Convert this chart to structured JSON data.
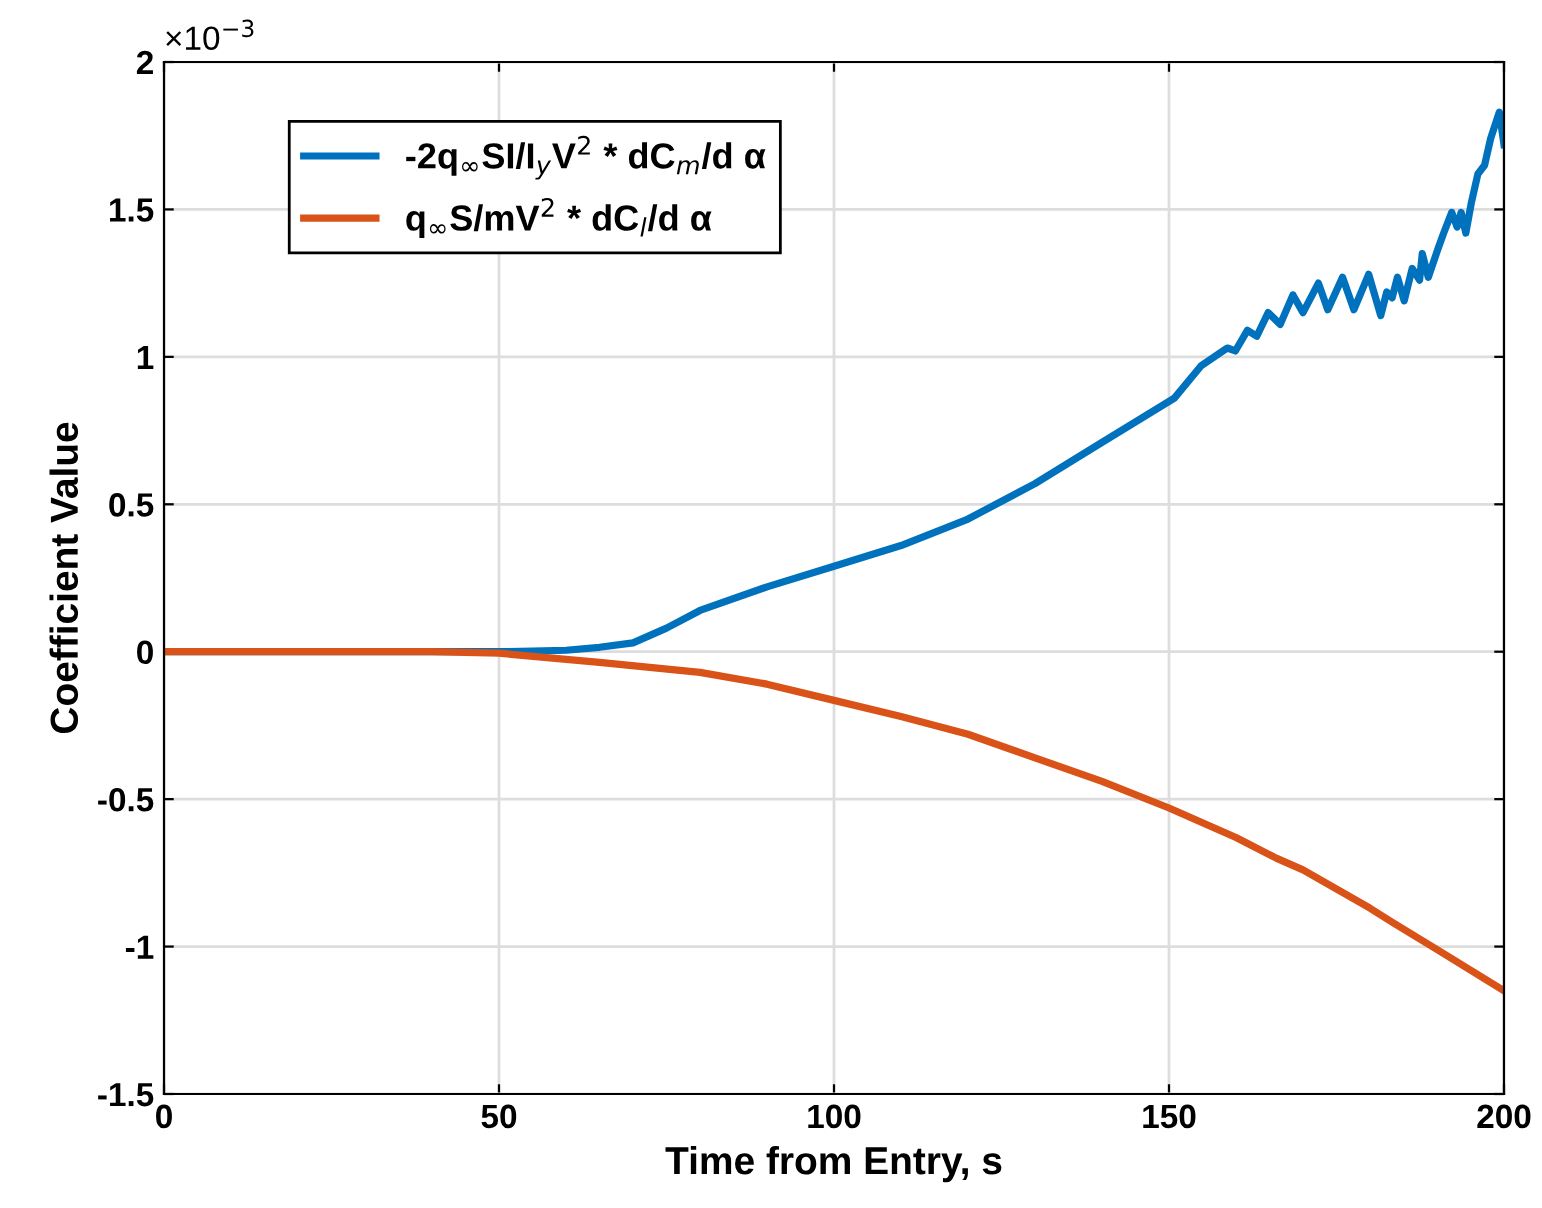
{
  "chart_data": {
    "type": "line",
    "xlabel": "Time from Entry, s",
    "ylabel": "Coefficient Value",
    "annotations": [
      "×10$^{−3}$"
    ],
    "xlim": [
      0,
      200
    ],
    "ylim": [
      -1.5,
      2
    ],
    "xticks": [
      0,
      50,
      100,
      150,
      200
    ],
    "yticks": [
      -1.5,
      -1,
      -0.5,
      0,
      0.5,
      1,
      1.5,
      2
    ],
    "grid": true,
    "legend": "top left",
    "line_style": "solid",
    "marker": "none",
    "series": [
      {
        "name": "-2q$_{∞}$SI/I$_{y}$V$^{2}$ * dC$_{m}$/d α",
        "color": "#0072bd",
        "x": [
          0,
          20,
          40,
          50,
          55,
          60,
          65,
          70,
          75,
          80,
          90,
          100,
          110,
          120,
          130,
          140,
          150.8,
          154.8,
          158.7,
          159.9,
          161.7,
          163.1,
          164.8,
          166.6,
          168.5,
          170,
          172.3,
          173.7,
          175.9,
          177.6,
          179.8,
          181.6,
          182.5,
          183.3,
          184.1,
          185.1,
          186.3,
          187.4,
          187.8,
          188.7,
          190.2,
          191,
          192.2,
          193,
          193.6,
          194.3,
          195.1,
          196.1,
          197.1,
          198,
          199.3,
          200
        ],
        "values": [
          0,
          0,
          0,
          0,
          0.002,
          0.005,
          0.015,
          0.03,
          0.08,
          0.14,
          0.22,
          0.29,
          0.36,
          0.45,
          0.57,
          0.71,
          0.86,
          0.97,
          1.03,
          1.02,
          1.09,
          1.07,
          1.15,
          1.11,
          1.21,
          1.15,
          1.25,
          1.16,
          1.27,
          1.16,
          1.28,
          1.14,
          1.22,
          1.2,
          1.27,
          1.19,
          1.3,
          1.26,
          1.35,
          1.27,
          1.37,
          1.42,
          1.49,
          1.44,
          1.49,
          1.42,
          1.52,
          1.62,
          1.65,
          1.74,
          1.83,
          1.72
        ]
      },
      {
        "name": "q$_{∞}$S/mV$^{2}$ * dC$_{l}$/d α",
        "color": "#d95319",
        "x": [
          0,
          20,
          40,
          50,
          65,
          80,
          90,
          100,
          110,
          120,
          130,
          140,
          150,
          160,
          166,
          170,
          180,
          183.5,
          190,
          200
        ],
        "values": [
          0,
          0,
          0,
          -0.005,
          -0.036,
          -0.07,
          -0.11,
          -0.165,
          -0.22,
          -0.28,
          -0.36,
          -0.44,
          -0.53,
          -0.63,
          -0.7,
          -0.74,
          -0.87,
          -0.92,
          -1.01,
          -1.15
        ]
      }
    ]
  }
}
